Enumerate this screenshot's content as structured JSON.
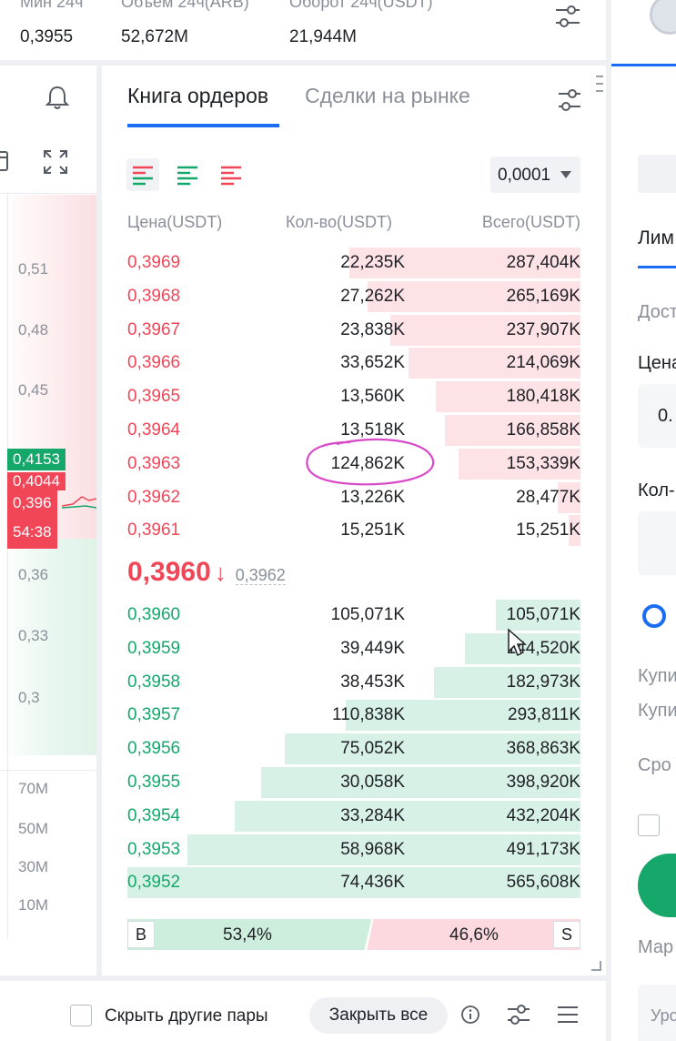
{
  "stats": [
    {
      "label": "Мин 24ч",
      "value": "0,3955"
    },
    {
      "label": "Объем 24ч(ARB)",
      "value": "52,672M"
    },
    {
      "label": "Оборот 24ч(USDT)",
      "value": "21,944M"
    }
  ],
  "chart": {
    "y_ticks": [
      "0,51",
      "0,48",
      "0,45",
      "0,36",
      "0,33",
      "0,3"
    ],
    "volume_ticks": [
      "70M",
      "50M",
      "30M",
      "10M"
    ],
    "tags": {
      "green": "0,4153",
      "red_top": "0,4044",
      "red_price": "0,396",
      "countdown": "54:38"
    }
  },
  "tabs": {
    "order_book": "Книга ордеров",
    "market_trades": "Сделки на рынке"
  },
  "precision": "0,0001",
  "columns": {
    "price": "Цена(USDT)",
    "qty": "Кол-во(USDT)",
    "total": "Всего(USDT)"
  },
  "asks": [
    {
      "price": "0,3969",
      "qty": "22,235K",
      "total": "287,404K",
      "depth": 0.51
    },
    {
      "price": "0,3968",
      "qty": "27,262K",
      "total": "265,169K",
      "depth": 0.47
    },
    {
      "price": "0,3967",
      "qty": "23,838K",
      "total": "237,907K",
      "depth": 0.42
    },
    {
      "price": "0,3966",
      "qty": "33,652K",
      "total": "214,069K",
      "depth": 0.38
    },
    {
      "price": "0,3965",
      "qty": "13,560K",
      "total": "180,418K",
      "depth": 0.32
    },
    {
      "price": "0,3964",
      "qty": "13,518K",
      "total": "166,858K",
      "depth": 0.3
    },
    {
      "price": "0,3963",
      "qty": "124,862K",
      "total": "153,339K",
      "depth": 0.27
    },
    {
      "price": "0,3962",
      "qty": "13,226K",
      "total": "28,477K",
      "depth": 0.05
    },
    {
      "price": "0,3961",
      "qty": "15,251K",
      "total": "15,251K",
      "depth": 0.027
    }
  ],
  "mid": {
    "price": "0,3960",
    "arrow": "↓",
    "reference": "0,3962"
  },
  "bids": [
    {
      "price": "0,3960",
      "qty": "105,071K",
      "total": "105,071K",
      "depth": 0.186
    },
    {
      "price": "0,3959",
      "qty": "39,449K",
      "total": "144,520K",
      "depth": 0.256
    },
    {
      "price": "0,3958",
      "qty": "38,453K",
      "total": "182,973K",
      "depth": 0.324
    },
    {
      "price": "0,3957",
      "qty": "110,838K",
      "total": "293,811K",
      "depth": 0.519
    },
    {
      "price": "0,3956",
      "qty": "75,052K",
      "total": "368,863K",
      "depth": 0.652
    },
    {
      "price": "0,3955",
      "qty": "30,058K",
      "total": "398,920K",
      "depth": 0.705
    },
    {
      "price": "0,3954",
      "qty": "33,284K",
      "total": "432,204K",
      "depth": 0.764
    },
    {
      "price": "0,3953",
      "qty": "58,968K",
      "total": "491,173K",
      "depth": 0.868
    },
    {
      "price": "0,3952",
      "qty": "74,436K",
      "total": "565,608K",
      "depth": 1.0
    }
  ],
  "ratio": {
    "buy_letter": "B",
    "buy_pct": "53,4%",
    "sell_letter": "S",
    "sell_pct": "46,6%",
    "buy_fraction": 0.534
  },
  "bottom": {
    "hide_pairs": "Скрыть другие пары",
    "close_all": "Закрыть все"
  },
  "right_panel": {
    "limit_tab": "Лим",
    "available": "Дост",
    "price": "Цена",
    "price_value": "0.",
    "qty": "Кол-",
    "buy1": "Купи",
    "buy2": "Купи",
    "term": "Сро",
    "market": "Мар",
    "level": "Уро"
  },
  "colors": {
    "ask": "#f04658",
    "bid": "#16a86b",
    "accent": "#1b6ef3"
  }
}
